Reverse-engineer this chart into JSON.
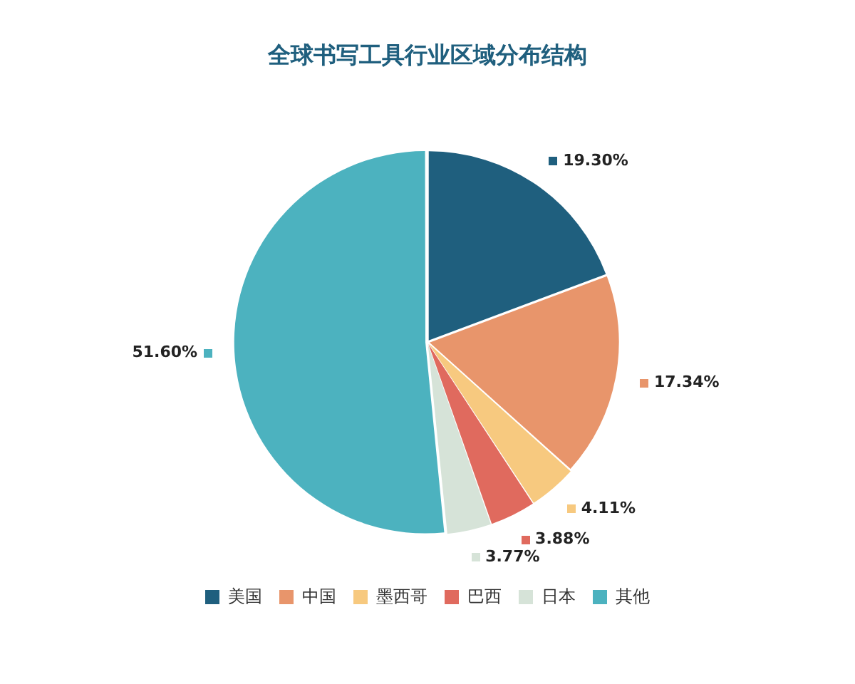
{
  "chart_data": {
    "type": "pie",
    "title": "全球书写工具行业区域分布结构",
    "categories": [
      "美国",
      "中国",
      "墨西哥",
      "巴西",
      "日本",
      "其他"
    ],
    "values": [
      19.3,
      17.34,
      4.11,
      3.88,
      3.77,
      51.6
    ],
    "value_labels": [
      "19.30%",
      "17.34%",
      "4.11%",
      "3.88%",
      "3.77%",
      "51.60%"
    ],
    "colors": [
      "#1f5f7e",
      "#e8956b",
      "#f7c97f",
      "#e06a5e",
      "#d6e3d8",
      "#4cb2bf"
    ],
    "legend": "bottom"
  }
}
